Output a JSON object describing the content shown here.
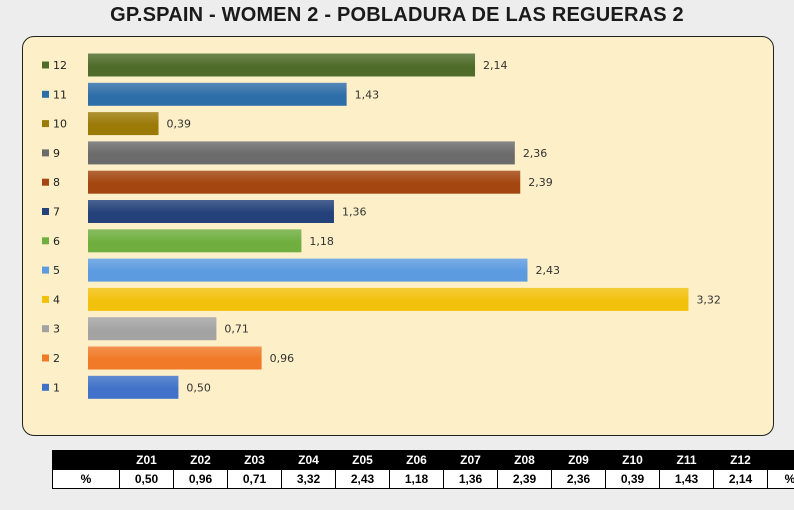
{
  "title": "GP.SPAIN - WOMEN 2 - POBLADURA DE LAS REGUERAS 2",
  "chart_data": {
    "type": "bar",
    "orientation": "horizontal",
    "categories": [
      "12",
      "11",
      "10",
      "9",
      "8",
      "7",
      "6",
      "5",
      "4",
      "3",
      "2",
      "1"
    ],
    "values": [
      2.14,
      1.43,
      0.39,
      2.36,
      2.39,
      1.36,
      1.18,
      2.43,
      3.32,
      0.71,
      0.96,
      0.5
    ],
    "value_labels": [
      "2,14",
      "1,43",
      "0,39",
      "2,36",
      "2,39",
      "1,36",
      "1,18",
      "2,43",
      "3,32",
      "0,71",
      "0,96",
      "0,50"
    ],
    "colors": [
      "#4f6b2a",
      "#2e6ea8",
      "#9c7a08",
      "#6b6b6b",
      "#a3460f",
      "#24417a",
      "#6fae3f",
      "#5c9be0",
      "#f2c10c",
      "#a3a3a3",
      "#f07a28",
      "#3f72c8"
    ],
    "xlim": [
      0,
      3.5
    ],
    "grid": false,
    "legend": "left"
  },
  "table": {
    "headers": [
      "",
      "Z01",
      "Z02",
      "Z03",
      "Z04",
      "Z05",
      "Z06",
      "Z07",
      "Z08",
      "Z09",
      "Z10",
      "Z11",
      "Z12",
      ""
    ],
    "row": [
      "%",
      "0,50",
      "0,96",
      "0,71",
      "3,32",
      "2,43",
      "1,18",
      "1,36",
      "2,39",
      "2,36",
      "0,39",
      "1,43",
      "2,14",
      "%"
    ]
  }
}
